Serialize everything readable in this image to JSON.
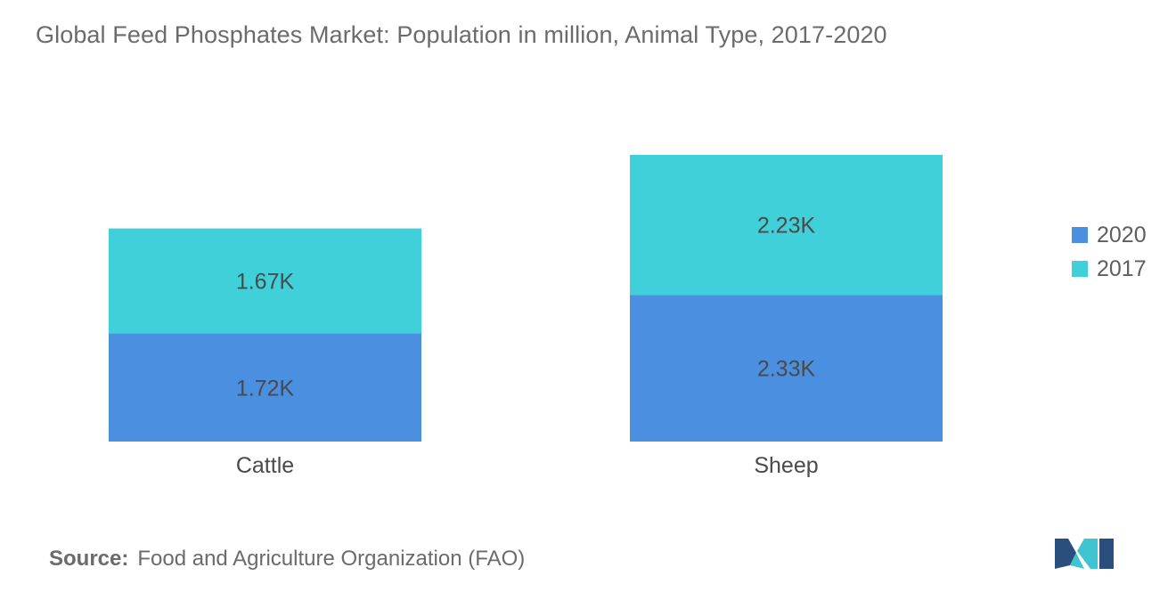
{
  "chart_data": {
    "type": "bar",
    "stacked": true,
    "title": "Global Feed Phosphates Market: Population in million, Animal Type, 2017-2020",
    "categories": [
      "Cattle",
      "Sheep"
    ],
    "series": [
      {
        "name": "2020",
        "values": [
          1720,
          2330
        ],
        "labels": [
          "1.72K",
          "2.33K"
        ],
        "color": "#4a8fe0"
      },
      {
        "name": "2017",
        "values": [
          1670,
          2230
        ],
        "labels": [
          "1.67K",
          "2.23K"
        ],
        "color": "#40d0da"
      }
    ],
    "xlabel": "",
    "ylabel": "",
    "y_axis_visible": false,
    "grid": false,
    "legend_position": "right",
    "legend_order": [
      "2020",
      "2017"
    ]
  },
  "legend": {
    "items": [
      {
        "label": "2020",
        "color": "#4a8fe0"
      },
      {
        "label": "2017",
        "color": "#40d0da"
      }
    ]
  },
  "source": {
    "label": "Source:",
    "text": "Food and Agriculture Organization (FAO)"
  },
  "logo": {
    "icon": "mordor-intelligence-logo-icon",
    "colors": [
      "#2b4f7d",
      "#40c4cf"
    ]
  }
}
